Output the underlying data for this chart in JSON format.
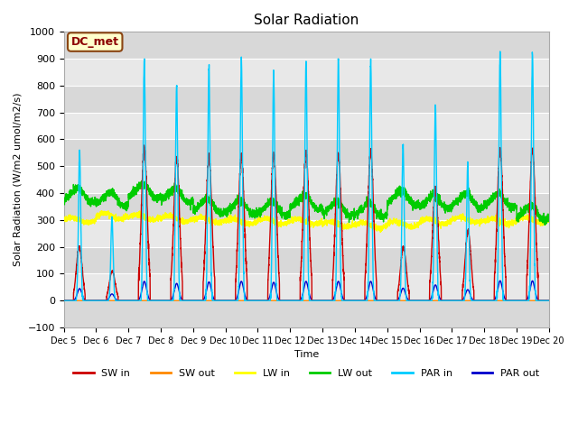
{
  "title": "Solar Radiation",
  "ylabel": "Solar Radiation (W/m2 umol/m2/s)",
  "xlabel": "Time",
  "ylim": [
    -100,
    1000
  ],
  "xlim": [
    0,
    15
  ],
  "annotation_text": "DC_met",
  "annotation_bg": "#ffffcc",
  "annotation_border": "#8B4513",
  "plot_bg": "#e0e0e0",
  "grid_color": "white",
  "xtick_labels": [
    "Dec 5",
    "Dec 6",
    "Dec 7",
    "Dec 8",
    "Dec 9",
    "Dec 10",
    "Dec 11",
    "Dec 12",
    "Dec 13",
    "Dec 14",
    "Dec 15",
    "Dec 16",
    "Dec 17",
    "Dec 18",
    "Dec 19",
    "Dec 20"
  ],
  "series": {
    "SW_in": {
      "color": "#cc0000",
      "lw": 1.0
    },
    "SW_out": {
      "color": "#ff8800",
      "lw": 1.0
    },
    "LW_in": {
      "color": "#ffff00",
      "lw": 1.0
    },
    "LW_out": {
      "color": "#00cc00",
      "lw": 1.0
    },
    "PAR_in": {
      "color": "#00ccff",
      "lw": 1.0
    },
    "PAR_out": {
      "color": "#0000cc",
      "lw": 1.0
    }
  },
  "legend": [
    {
      "label": "SW in",
      "color": "#cc0000"
    },
    {
      "label": "SW out",
      "color": "#ff8800"
    },
    {
      "label": "LW in",
      "color": "#ffff00"
    },
    {
      "label": "LW out",
      "color": "#00cc00"
    },
    {
      "label": "PAR in",
      "color": "#00ccff"
    },
    {
      "label": "PAR out",
      "color": "#0000cc"
    }
  ]
}
